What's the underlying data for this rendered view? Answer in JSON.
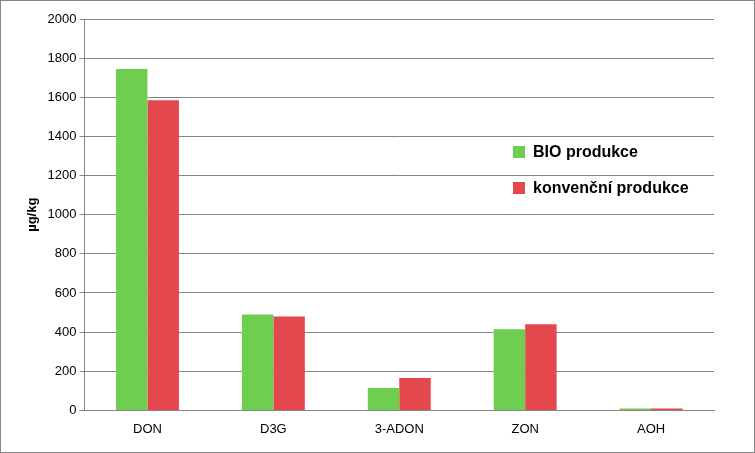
{
  "chart_data": {
    "type": "bar",
    "y_label": "µg/kg",
    "categories": [
      "DON",
      "D3G",
      "3-ADON",
      "ZON",
      "AOH"
    ],
    "series": [
      {
        "name": "BIO produkce",
        "color": "#6fcd4f",
        "values": [
          1745,
          490,
          115,
          415,
          10
        ]
      },
      {
        "name": "konvenční produkce",
        "color": "#e5474f",
        "values": [
          1585,
          480,
          165,
          440,
          10
        ]
      }
    ],
    "ylim": [
      0,
      2000
    ],
    "yticks": [
      0,
      200,
      400,
      600,
      800,
      1000,
      1200,
      1400,
      1600,
      1800,
      2000
    ],
    "grid": true,
    "legend": "right"
  }
}
